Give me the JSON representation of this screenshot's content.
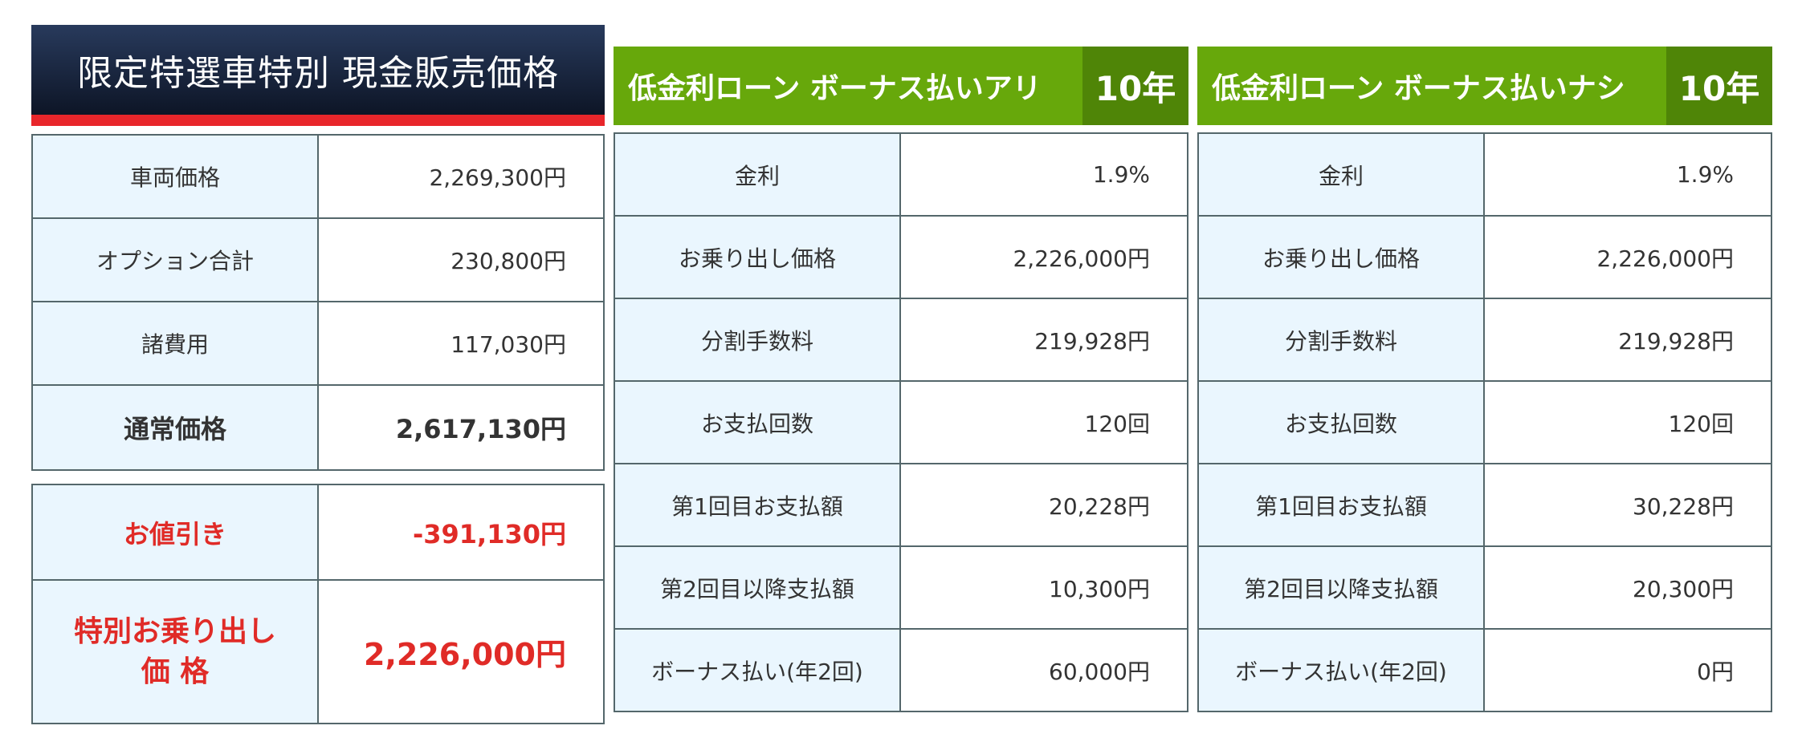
{
  "cash": {
    "header_title": "限定特選車特別 現金販売価格",
    "rows": [
      {
        "label": "車両価格",
        "value": "2,269,300円"
      },
      {
        "label": "オプション合計",
        "value": "230,800円"
      },
      {
        "label": "諸費用",
        "value": "117,030円"
      },
      {
        "label": "通常価格",
        "value": "2,617,130円"
      }
    ],
    "discount": {
      "label": "お値引き",
      "value": "-391,130円"
    },
    "special": {
      "label_line1": "特別お乗り出し",
      "label_line2": "価 格",
      "value": "2,226,000円"
    }
  },
  "loans": [
    {
      "title": "低金利ローン ボーナス払いアリ",
      "years": "10年",
      "rows": [
        {
          "label": "金利",
          "value": "1.9%"
        },
        {
          "label": "お乗り出し価格",
          "value": "2,226,000円"
        },
        {
          "label": "分割手数料",
          "value": "219,928円"
        },
        {
          "label": "お支払回数",
          "value": "120回"
        },
        {
          "label": "第1回目お支払額",
          "value": "20,228円"
        },
        {
          "label": "第2回目以降支払額",
          "value": "10,300円"
        },
        {
          "label": "ボーナス払い(年2回)",
          "value": "60,000円"
        }
      ]
    },
    {
      "title": "低金利ローン ボーナス払いナシ",
      "years": "10年",
      "rows": [
        {
          "label": "金利",
          "value": "1.9%"
        },
        {
          "label": "お乗り出し価格",
          "value": "2,226,000円"
        },
        {
          "label": "分割手数料",
          "value": "219,928円"
        },
        {
          "label": "お支払回数",
          "value": "120回"
        },
        {
          "label": "第1回目お支払額",
          "value": "30,228円"
        },
        {
          "label": "第2回目以降支払額",
          "value": "20,300円"
        },
        {
          "label": "ボーナス払い(年2回)",
          "value": "0円"
        }
      ]
    }
  ],
  "colors": {
    "cash_header_bg": "#1a2640",
    "cash_header_accent": "#e8262b",
    "loan_header_bg": "#67a80b",
    "loan_years_bg": "#4f8507",
    "label_cell_bg": "#eaf6fe",
    "discount_text": "#e02b27"
  }
}
